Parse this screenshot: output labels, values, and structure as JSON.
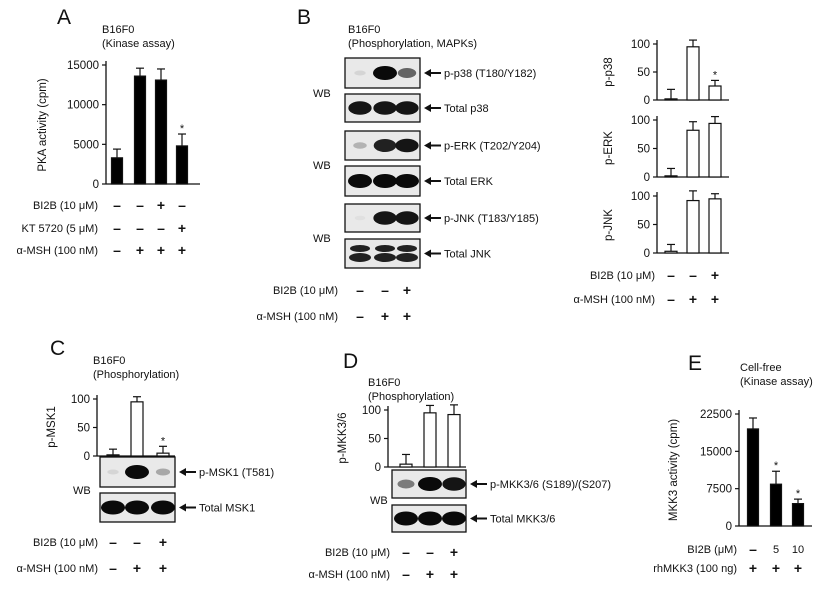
{
  "panels": {
    "A": {
      "letter": "A",
      "title": [
        "B16F0",
        "(Kinase assay)"
      ]
    },
    "B": {
      "letter": "B",
      "title": [
        "B16F0",
        "(Phosphorylation, MAPKs)"
      ],
      "wb": "WB"
    },
    "C": {
      "letter": "C",
      "title": [
        "B16F0",
        "(Phosphorylation)"
      ],
      "wb": "WB"
    },
    "D": {
      "letter": "D",
      "title": [
        "B16F0",
        "(Phosphorylation)"
      ],
      "wb": "WB"
    },
    "E": {
      "letter": "E",
      "title": [
        "Cell-free",
        "(Kinase assay)"
      ]
    }
  },
  "treatments": {
    "A": [
      {
        "label": "BI2B (10 μM)",
        "signs": [
          "–",
          "–",
          "+",
          "–"
        ]
      },
      {
        "label": "KT 5720 (5 μM)",
        "signs": [
          "–",
          "–",
          "–",
          "+"
        ]
      },
      {
        "label": "α-MSH (100 nM)",
        "signs": [
          "–",
          "+",
          "+",
          "+"
        ]
      }
    ],
    "B_blot": [
      {
        "label": "BI2B (10 μM)",
        "signs": [
          "–",
          "–",
          "+"
        ]
      },
      {
        "label": "α-MSH (100 nM)",
        "signs": [
          "–",
          "+",
          "+"
        ]
      }
    ],
    "B_chart": [
      {
        "label": "BI2B (10 μM)",
        "signs": [
          "–",
          "–",
          "+"
        ]
      },
      {
        "label": "α-MSH (100 nM)",
        "signs": [
          "–",
          "+",
          "+"
        ]
      }
    ],
    "C": [
      {
        "label": "BI2B (10 μM)",
        "signs": [
          "–",
          "–",
          "+"
        ]
      },
      {
        "label": "α-MSH (100 nM)",
        "signs": [
          "–",
          "+",
          "+"
        ]
      }
    ],
    "D": [
      {
        "label": "BI2B (10 μM)",
        "signs": [
          "–",
          "–",
          "+"
        ]
      },
      {
        "label": "α-MSH (100 nM)",
        "signs": [
          "–",
          "+",
          "+"
        ]
      }
    ],
    "E": [
      {
        "label": "BI2B (μM)",
        "signs": [
          "–",
          "5",
          "10"
        ]
      },
      {
        "label": "rhMKK3 (100 ng)",
        "signs": [
          "+",
          "+",
          "+"
        ]
      }
    ]
  },
  "blots": {
    "B": [
      {
        "label": "p-p38 (T180/Y182)",
        "intensity": [
          0.1,
          1.0,
          0.6
        ]
      },
      {
        "label": "Total p38",
        "intensity": [
          0.95,
          0.95,
          0.95
        ]
      },
      {
        "label": "p-ERK (T202/Y204)",
        "intensity": [
          0.25,
          0.9,
          0.95
        ]
      },
      {
        "label": "Total ERK",
        "intensity": [
          1.0,
          1.0,
          1.0
        ]
      },
      {
        "label": "p-JNK (T183/Y185)",
        "intensity": [
          0.05,
          0.95,
          0.95
        ]
      },
      {
        "label": "Total JNK",
        "intensity": [
          0.9,
          0.9,
          0.9
        ],
        "double": true
      }
    ],
    "C": [
      {
        "label": "p-MSK1 (T581)",
        "intensity": [
          0.1,
          1.0,
          0.3
        ]
      },
      {
        "label": "Total MSK1",
        "intensity": [
          1.0,
          1.0,
          1.0
        ]
      }
    ],
    "D": [
      {
        "label": "p-MKK3/6 (S189)/(S207)",
        "intensity": [
          0.5,
          1.0,
          0.95
        ]
      },
      {
        "label": "Total MKK3/6",
        "intensity": [
          1.0,
          1.0,
          1.0
        ]
      }
    ]
  },
  "chart_data": [
    {
      "id": "A",
      "type": "bar",
      "ylabel": "PKA activity (cpm)",
      "ylim": [
        0,
        15000
      ],
      "yticks": [
        "0",
        "5000",
        "10000",
        "15000"
      ],
      "tickvals": [
        0,
        5000,
        10000,
        15000
      ],
      "values": [
        3300,
        13600,
        13100,
        4800
      ],
      "errors": [
        1100,
        1000,
        1400,
        1500
      ],
      "significant": [
        false,
        false,
        false,
        true
      ],
      "fill": "#000000",
      "star": "*"
    },
    {
      "id": "B1",
      "type": "bar",
      "ylabel": "p-p38",
      "ylim": [
        0,
        100
      ],
      "yticks": [
        "0",
        "50",
        "100"
      ],
      "tickvals": [
        0,
        50,
        100
      ],
      "values": [
        2,
        95,
        25
      ],
      "errors": [
        17,
        12,
        10
      ],
      "significant": [
        false,
        false,
        true
      ],
      "fill": "#ffffff",
      "star": "*"
    },
    {
      "id": "B2",
      "type": "bar",
      "ylabel": "p-ERK",
      "ylim": [
        0,
        100
      ],
      "yticks": [
        "0",
        "50",
        "100"
      ],
      "tickvals": [
        0,
        50,
        100
      ],
      "values": [
        2,
        82,
        94
      ],
      "errors": [
        13,
        15,
        12
      ],
      "significant": [
        false,
        false,
        false
      ],
      "fill": "#ffffff",
      "star": "*"
    },
    {
      "id": "B3",
      "type": "bar",
      "ylabel": "p-JNK",
      "ylim": [
        0,
        100
      ],
      "yticks": [
        "0",
        "50",
        "100"
      ],
      "tickvals": [
        0,
        50,
        100
      ],
      "values": [
        3,
        92,
        95
      ],
      "errors": [
        12,
        17,
        9
      ],
      "significant": [
        false,
        false,
        false
      ],
      "fill": "#ffffff",
      "star": "*"
    },
    {
      "id": "C",
      "type": "bar",
      "ylabel": "p-MSK1",
      "ylim": [
        0,
        100
      ],
      "yticks": [
        "0",
        "50",
        "100"
      ],
      "tickvals": [
        0,
        50,
        100
      ],
      "values": [
        2,
        95,
        5
      ],
      "errors": [
        10,
        9,
        12
      ],
      "significant": [
        false,
        false,
        true
      ],
      "fill": "#ffffff",
      "star": "*"
    },
    {
      "id": "D",
      "type": "bar",
      "ylabel": "p-MKK3/6",
      "ylim": [
        0,
        100
      ],
      "yticks": [
        "0",
        "50",
        "100"
      ],
      "tickvals": [
        0,
        50,
        100
      ],
      "values": [
        5,
        95,
        92
      ],
      "errors": [
        17,
        13,
        17
      ],
      "significant": [
        false,
        false,
        false
      ],
      "fill": "#ffffff",
      "star": "*"
    },
    {
      "id": "E",
      "type": "bar",
      "ylabel": "MKK3 activity (cpm)",
      "ylim": [
        0,
        22500
      ],
      "yticks": [
        "0",
        "7500",
        "15000",
        "22500"
      ],
      "tickvals": [
        0,
        7500,
        15000,
        22500
      ],
      "values": [
        19500,
        8400,
        4500
      ],
      "errors": [
        2200,
        2600,
        900
      ],
      "significant": [
        false,
        true,
        true
      ],
      "fill": "#000000",
      "star": "*"
    }
  ]
}
